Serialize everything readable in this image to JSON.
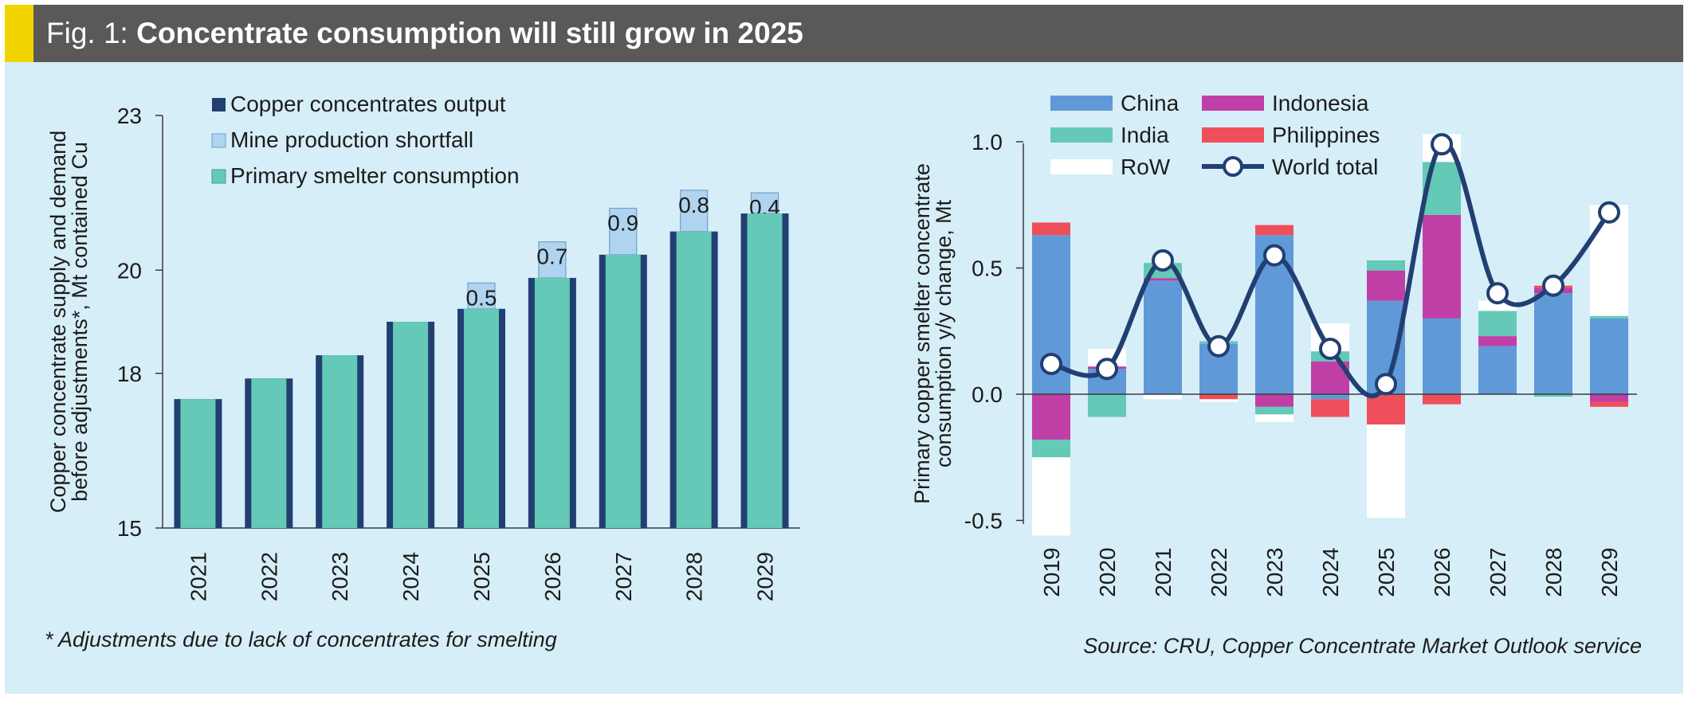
{
  "header": {
    "fig_label": "Fig. 1: ",
    "headline": "Concentrate consumption will still grow in 2025",
    "accent_color": "#f2d400",
    "bar_color": "#5a5859"
  },
  "footnote": "* Adjustments due to lack of concentrates for smelting",
  "source": "Source: CRU, Copper Concentrate Market Outlook service",
  "colors": {
    "background": "#d6eef8",
    "concentrates_output": "#223f72",
    "mine_shortfall": "#b0d4ef",
    "primary_smelter": "#64c9b6",
    "china": "#5f99d8",
    "india": "#64c9b6",
    "row": "#ffffff",
    "indonesia": "#c03fa6",
    "philippines": "#ef4f5a",
    "world_total_line": "#223f72"
  },
  "chart_data": [
    {
      "type": "bar",
      "ylabel": [
        "Copper concentrate supply and demand",
        "before adjustments*, Mt contained Cu"
      ],
      "ylim": [
        15,
        23
      ],
      "yticks": [
        15,
        18,
        20,
        23
      ],
      "grid": false,
      "legend_position": "top",
      "categories": [
        "2021",
        "2022",
        "2023",
        "2024",
        "2025",
        "2026",
        "2027",
        "2028",
        "2029"
      ],
      "series": [
        {
          "name": "Copper concentrates output",
          "values": [
            17.5,
            17.9,
            18.35,
            19.0,
            19.25,
            19.85,
            20.3,
            20.75,
            21.1
          ]
        },
        {
          "name": "Mine production shortfall",
          "values": [
            0,
            0,
            0,
            0,
            0.5,
            0.7,
            0.9,
            0.8,
            0.4
          ]
        },
        {
          "name": "Primary smelter consumption",
          "values": [
            17.5,
            17.9,
            18.35,
            19.0,
            19.25,
            19.85,
            20.3,
            20.75,
            21.1
          ]
        }
      ],
      "data_labels": [
        "",
        "",
        "",
        "",
        "0.5",
        "0.7",
        "0.9",
        "0.8",
        "0.4"
      ]
    },
    {
      "type": "bar",
      "stacked": true,
      "ylabel": [
        "Primary copper smelter concentrate",
        "consumption y/y change, Mt"
      ],
      "ylim": [
        -0.5,
        1.0
      ],
      "yticks": [
        -0.5,
        0.0,
        0.5,
        1.0
      ],
      "ytick_labels": [
        "-0.5",
        "0.0",
        "0.5",
        "1.0"
      ],
      "grid": false,
      "legend_position": "top",
      "categories": [
        "2019",
        "2020",
        "2021",
        "2022",
        "2023",
        "2024",
        "2025",
        "2026",
        "2027",
        "2028",
        "2029"
      ],
      "series": [
        {
          "name": "China",
          "values": [
            0.63,
            0.1,
            0.45,
            0.2,
            0.63,
            -0.02,
            0.37,
            0.3,
            0.19,
            0.4,
            0.3
          ]
        },
        {
          "name": "Indonesia",
          "values": [
            -0.18,
            0.01,
            0.01,
            0,
            -0.05,
            0.13,
            0.12,
            0.41,
            0.04,
            0.02,
            -0.03
          ]
        },
        {
          "name": "India",
          "values": [
            -0.07,
            -0.09,
            0.06,
            0.01,
            -0.03,
            0.04,
            0.04,
            0.21,
            0.1,
            -0.01,
            0.01
          ]
        },
        {
          "name": "Philippines",
          "values": [
            0.05,
            0,
            0,
            -0.02,
            0.04,
            -0.07,
            -0.12,
            -0.04,
            0,
            0.01,
            -0.02
          ]
        },
        {
          "name": "RoW",
          "values": [
            -0.31,
            0.07,
            -0.02,
            -0.01,
            -0.03,
            0.11,
            -0.37,
            0.11,
            0.04,
            0,
            0.44
          ]
        }
      ],
      "line_series": {
        "name": "World total",
        "values": [
          0.12,
          0.1,
          0.53,
          0.19,
          0.55,
          0.18,
          0.04,
          0.99,
          0.4,
          0.43,
          0.72
        ]
      }
    }
  ]
}
